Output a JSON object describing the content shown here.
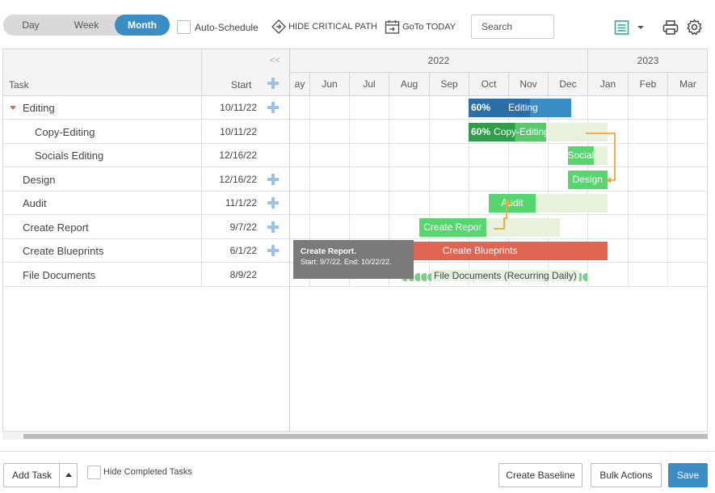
{
  "toolbar": {
    "views": [
      "Day",
      "Week",
      "Month"
    ],
    "active_view": "Month",
    "auto_schedule_label": "Auto-Schedule",
    "hide_critical_path_label": "HIDE CRITICAL PATH",
    "goto_today_label": "GoTo TODAY",
    "search_placeholder": "Search"
  },
  "grid": {
    "collapse_label": "<<",
    "task_header": "Task",
    "start_header": "Start"
  },
  "timeline": {
    "years": [
      "2022",
      "2023"
    ],
    "months": [
      "ay",
      "Jun",
      "Jul",
      "Aug",
      "Sep",
      "Oct",
      "Nov",
      "Dec",
      "Jan",
      "Feb",
      "Mar"
    ]
  },
  "tasks": [
    {
      "name": "Editing",
      "start": "10/11/22",
      "has_plus": true,
      "expanded": true,
      "indent": 0
    },
    {
      "name": "Copy-Editing",
      "start": "10/11/22",
      "has_plus": false,
      "indent": 1
    },
    {
      "name": "Socials Editing",
      "start": "12/16/22",
      "has_plus": false,
      "indent": 1
    },
    {
      "name": "Design",
      "start": "12/16/22",
      "has_plus": true,
      "indent": 0
    },
    {
      "name": "Audit",
      "start": "11/1/22",
      "has_plus": true,
      "indent": 0
    },
    {
      "name": "Create Report",
      "start": "9/7/22",
      "has_plus": true,
      "indent": 0
    },
    {
      "name": "Create Blueprints",
      "start": "6/1/22",
      "has_plus": true,
      "indent": 0
    },
    {
      "name": "File Documents",
      "start": "8/9/22",
      "has_plus": false,
      "indent": 0
    }
  ],
  "bars": [
    {
      "row": 0,
      "label": "Editing",
      "progress_label": "60%",
      "progress": 0.6,
      "color": "#3b8dc6",
      "start_month": 5.0,
      "end_month": 7.6
    },
    {
      "row": 1,
      "label": "Copy-Editing",
      "progress_label": "60%",
      "progress": 0.6,
      "color": "#57c96b",
      "start_month": 5.0,
      "end_month": 6.95
    },
    {
      "row": 2,
      "label": "Social",
      "color": "#57d56f",
      "start_month": 7.5,
      "end_month": 8.15
    },
    {
      "row": 3,
      "label": "Design",
      "color": "#57d56f",
      "start_month": 7.5,
      "end_month": 8.5
    },
    {
      "row": 4,
      "label": "Audit",
      "color": "#57d56f",
      "start_month": 5.5,
      "end_month": 6.7
    },
    {
      "row": 5,
      "label": "Create Repor",
      "color": "#57d56f",
      "start_month": 3.75,
      "end_month": 5.45
    },
    {
      "row": 6,
      "label": "Create Blueprints",
      "color": "#e06550",
      "start_month": 1.3,
      "end_month": 8.5
    },
    {
      "row": 7,
      "label": "File Documents (Recurring Daily)",
      "color": "#7fcf8c",
      "start_month": 3.3,
      "end_month": 8.0,
      "recurring": true
    }
  ],
  "tooltip": {
    "title": "Create Report.",
    "detail": "Start: 9/7/22. End: 10/22/22."
  },
  "footer": {
    "add_task_label": "Add Task",
    "hide_completed_label": "Hide Completed Tasks",
    "create_baseline_label": "Create Baseline",
    "bulk_actions_label": "Bulk Actions",
    "save_label": "Save"
  },
  "colors": {
    "accent": "#3b8dc6",
    "green": "#57d56f",
    "red": "#e06550",
    "critical_path": "#f0a53b"
  }
}
